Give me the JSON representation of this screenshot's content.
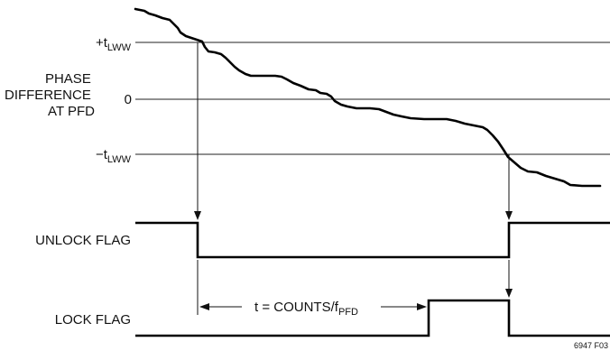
{
  "labels": {
    "plus_lww": {
      "main": "+t",
      "sub": "LWW"
    },
    "zero": "0",
    "minus_lww": {
      "main": "−t",
      "sub": "LWW"
    },
    "phase_difference": [
      "PHASE",
      "DIFFERENCE",
      "AT PFD"
    ],
    "unlock_flag": "UNLOCK FLAG",
    "lock_flag": "LOCK FLAG",
    "timer": {
      "main": "t = COUNTS/f",
      "sub": "PFD"
    },
    "figure_id": "6947 F03"
  },
  "signals": {
    "unlock_flag": {
      "initial": "high",
      "low_between": [
        "enter_window",
        "exit_window"
      ]
    },
    "lock_flag": {
      "initial": "low",
      "high_between": [
        "counter_complete",
        "exit_window"
      ]
    }
  }
}
